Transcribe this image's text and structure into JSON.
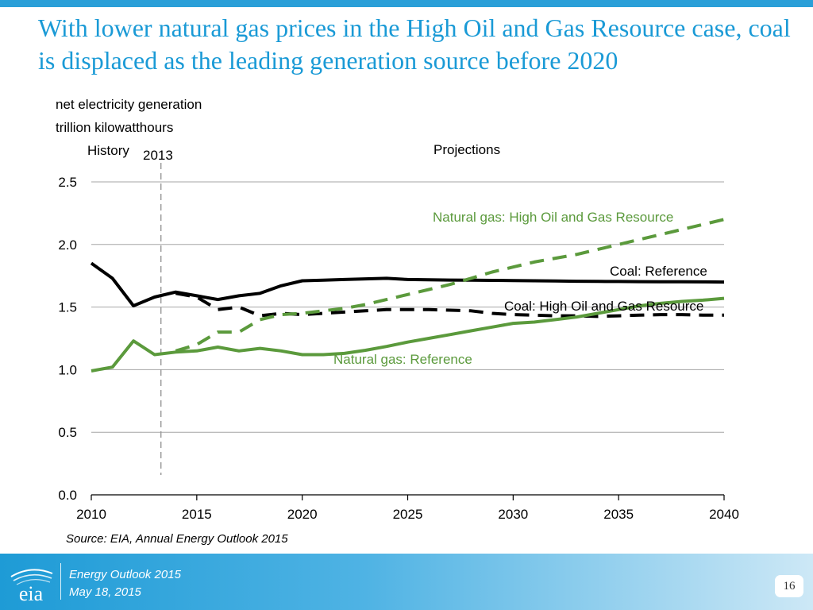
{
  "slide": {
    "title": "With lower natural gas prices in the High Oil and Gas Resource case, coal is displaced as the leading generation source before 2020",
    "source": "Source:  EIA, Annual Energy Outlook 2015",
    "colors": {
      "accent": "#1a9ad6",
      "green": "#5b9a3c",
      "black": "#000000"
    }
  },
  "footer": {
    "line1": "Energy  Outlook 2015",
    "line2": "May 18, 2015",
    "page_number": "16",
    "logo_text": "eia",
    "logo_icon": "eia-logo-icon"
  },
  "chart_data": {
    "type": "line",
    "ylabel_line1": "net electricity generation",
    "ylabel_line2": "trillion kilowatthours",
    "history_label": "History",
    "projections_label": "Projections",
    "divider_label": "2013",
    "divider_x": 2013.3,
    "xlim": [
      2010,
      2040
    ],
    "ylim": [
      0,
      2.5
    ],
    "xticks": [
      2010,
      2015,
      2020,
      2025,
      2030,
      2035,
      2040
    ],
    "xtick_labels": [
      "2010",
      "2015",
      "2020",
      "2025",
      "2030",
      "2035",
      "2040"
    ],
    "yticks": [
      0,
      0.5,
      1.0,
      1.5,
      2.0,
      2.5
    ],
    "ytick_labels": [
      "0.0",
      "0.5",
      "1.0",
      "1.5",
      "2.0",
      "2.5"
    ],
    "grid": true,
    "series": [
      {
        "name": "Coal: Reference",
        "label": "Coal: Reference",
        "color": "#000000",
        "style": "solid",
        "x": [
          2010,
          2011,
          2012,
          2013,
          2014,
          2015,
          2016,
          2017,
          2018,
          2019,
          2020,
          2021,
          2022,
          2023,
          2024,
          2025,
          2026,
          2027,
          2028,
          2029,
          2030,
          2031,
          2032,
          2033,
          2034,
          2035,
          2036,
          2037,
          2038,
          2039,
          2040
        ],
        "values": [
          1.85,
          1.73,
          1.51,
          1.58,
          1.62,
          1.59,
          1.56,
          1.59,
          1.61,
          1.67,
          1.71,
          1.715,
          1.72,
          1.725,
          1.73,
          1.72,
          1.718,
          1.716,
          1.715,
          1.713,
          1.712,
          1.71,
          1.708,
          1.706,
          1.705,
          1.704,
          1.703,
          1.702,
          1.702,
          1.701,
          1.7
        ]
      },
      {
        "name": "Coal: High Oil and Gas Resource",
        "label": "Coal: High Oil and Gas Resource",
        "color": "#000000",
        "style": "dashed",
        "x": [
          2014,
          2015,
          2016,
          2017,
          2018,
          2019,
          2020,
          2021,
          2022,
          2023,
          2024,
          2025,
          2026,
          2027,
          2028,
          2029,
          2030,
          2031,
          2032,
          2033,
          2034,
          2035,
          2036,
          2037,
          2038,
          2039,
          2040
        ],
        "values": [
          1.61,
          1.58,
          1.48,
          1.5,
          1.43,
          1.45,
          1.44,
          1.45,
          1.46,
          1.47,
          1.48,
          1.48,
          1.48,
          1.475,
          1.47,
          1.45,
          1.44,
          1.435,
          1.43,
          1.43,
          1.425,
          1.43,
          1.435,
          1.44,
          1.44,
          1.435,
          1.435
        ]
      },
      {
        "name": "Natural gas: High Oil and Gas Resource",
        "label": "Natural gas:  High Oil and Gas Resource",
        "color": "#5b9a3c",
        "style": "dashed",
        "x": [
          2014,
          2015,
          2016,
          2017,
          2018,
          2019,
          2020,
          2021,
          2022,
          2023,
          2024,
          2025,
          2026,
          2027,
          2028,
          2029,
          2030,
          2031,
          2032,
          2033,
          2034,
          2035,
          2036,
          2037,
          2038,
          2039,
          2040
        ],
        "values": [
          1.15,
          1.2,
          1.3,
          1.3,
          1.4,
          1.44,
          1.45,
          1.47,
          1.49,
          1.52,
          1.56,
          1.6,
          1.64,
          1.68,
          1.73,
          1.78,
          1.82,
          1.86,
          1.89,
          1.92,
          1.96,
          2.0,
          2.04,
          2.08,
          2.12,
          2.16,
          2.2
        ]
      },
      {
        "name": "Natural gas: Reference",
        "label": "Natural gas: Reference",
        "color": "#5b9a3c",
        "style": "solid",
        "x": [
          2010,
          2011,
          2012,
          2013,
          2014,
          2015,
          2016,
          2017,
          2018,
          2019,
          2020,
          2021,
          2022,
          2023,
          2024,
          2025,
          2026,
          2027,
          2028,
          2029,
          2030,
          2031,
          2032,
          2033,
          2034,
          2035,
          2036,
          2037,
          2038,
          2039,
          2040
        ],
        "values": [
          0.99,
          1.02,
          1.23,
          1.12,
          1.14,
          1.15,
          1.18,
          1.15,
          1.17,
          1.15,
          1.12,
          1.12,
          1.13,
          1.155,
          1.185,
          1.22,
          1.25,
          1.28,
          1.31,
          1.34,
          1.37,
          1.38,
          1.4,
          1.42,
          1.45,
          1.48,
          1.51,
          1.53,
          1.545,
          1.555,
          1.57
        ]
      }
    ]
  }
}
